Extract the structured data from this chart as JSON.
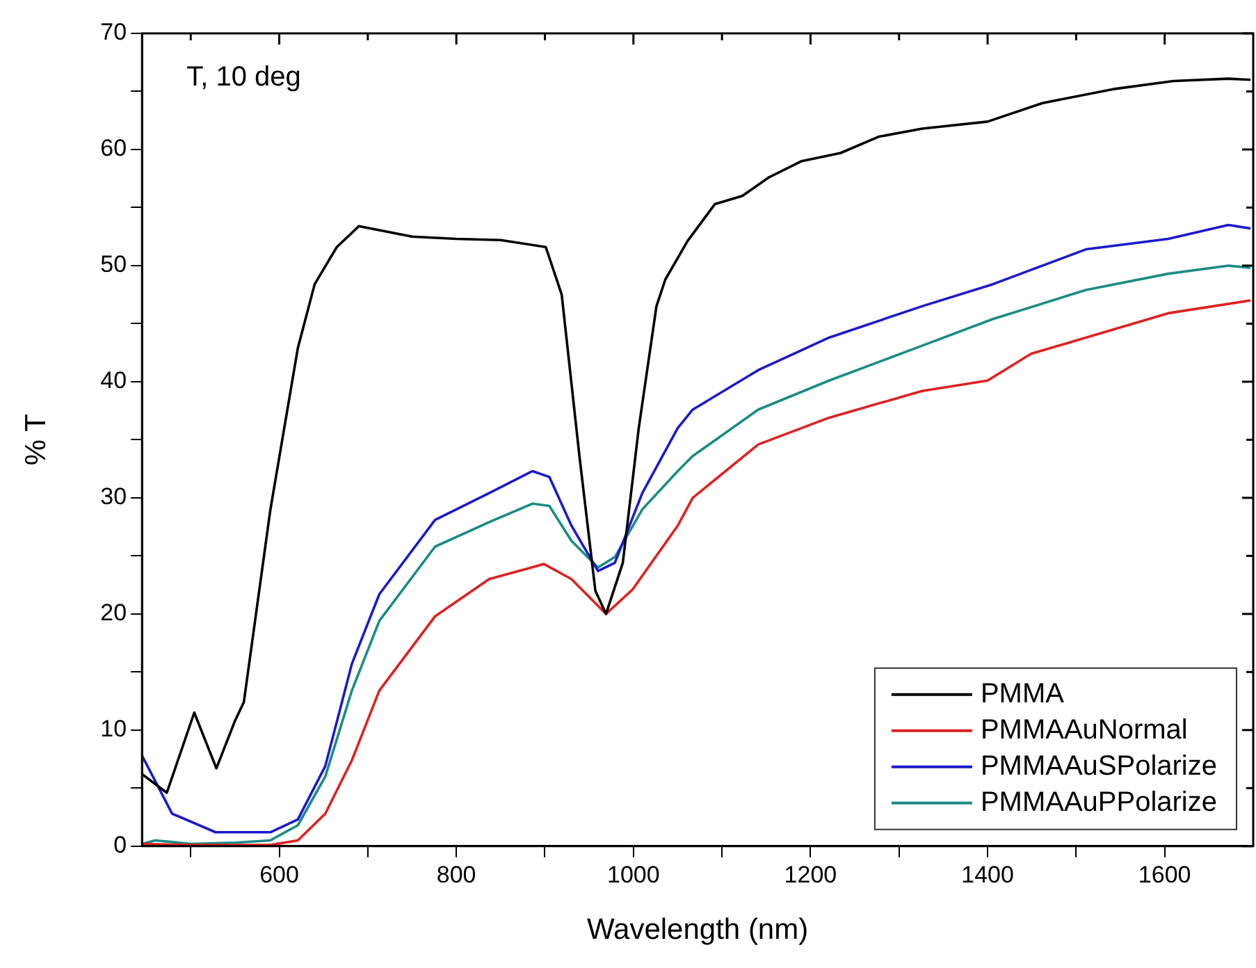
{
  "chart_data": {
    "type": "line",
    "xlabel": "Wavelength (nm)",
    "ylabel": "% T",
    "annotations": [
      "T, 10 deg"
    ],
    "xlim": [
      445,
      1700
    ],
    "ylim": [
      0,
      70
    ],
    "xticks": [
      {
        "value": 500,
        "label": null
      },
      600,
      {
        "value": 700,
        "label": null
      },
      800,
      {
        "value": 900,
        "label": null
      },
      1000,
      {
        "value": 1100,
        "label": null
      },
      1200,
      {
        "value": 1300,
        "label": null
      },
      1400,
      {
        "value": 1500,
        "label": null
      },
      1600
    ],
    "yticks": [
      0,
      {
        "value": 5,
        "label": null
      },
      10,
      {
        "value": 15,
        "label": null
      },
      20,
      {
        "value": 25,
        "label": null
      },
      30,
      {
        "value": 35,
        "label": null
      },
      40,
      {
        "value": 45,
        "label": null
      },
      50,
      {
        "value": 55,
        "label": null
      },
      60,
      {
        "value": 65,
        "label": null
      },
      70
    ],
    "grid": false,
    "legend": "bottom right",
    "marker": "none",
    "line_style": "solid",
    "series": [
      {
        "name": "PMMA",
        "color": "#000000",
        "x": [
          445,
          473,
          504,
          529,
          550,
          560,
          590,
          621,
          640,
          665,
          690,
          750,
          800,
          850,
          901,
          919,
          939,
          957,
          969,
          988,
          1006,
          1026,
          1036,
          1061,
          1092,
          1123,
          1153,
          1190,
          1234,
          1277,
          1326,
          1400,
          1462,
          1542,
          1610,
          1672,
          1697
        ],
        "values": [
          6.2,
          4.6,
          11.5,
          6.7,
          10.8,
          12.4,
          29,
          42.9,
          48.4,
          51.6,
          53.4,
          52.5,
          52.3,
          52.2,
          51.6,
          47.5,
          33.6,
          22,
          20,
          24.4,
          36,
          46.5,
          48.8,
          52.1,
          55.3,
          56,
          57.6,
          59,
          59.7,
          61.1,
          61.8,
          62.4,
          64,
          65.2,
          65.9,
          66.1,
          66
        ]
      },
      {
        "name": "PMMAAuNormal",
        "color": "#e02020",
        "x": [
          445,
          500,
          550,
          590,
          621,
          652,
          682,
          713,
          776,
          837,
          899,
          930,
          969,
          999,
          1050,
          1067,
          1141,
          1221,
          1326,
          1400,
          1449,
          1511,
          1604,
          1697
        ],
        "values": [
          0.2,
          0.1,
          0.1,
          0.1,
          0.5,
          2.8,
          7.4,
          13.4,
          19.8,
          23,
          24.3,
          23,
          20,
          22.1,
          27.6,
          30,
          34.6,
          36.9,
          39.2,
          40.1,
          42.4,
          43.8,
          45.9,
          47
        ]
      },
      {
        "name": "PMMAAuSPolarize",
        "color": "#1a1acc",
        "x": [
          445,
          479,
          528,
          590,
          621,
          652,
          682,
          713,
          776,
          837,
          886,
          905,
          930,
          960,
          979,
          1010,
          1050,
          1067,
          1141,
          1221,
          1326,
          1406,
          1511,
          1604,
          1672,
          1697
        ],
        "values": [
          7.8,
          2.8,
          1.2,
          1.2,
          2.3,
          6.9,
          15.7,
          21.7,
          28.1,
          30.4,
          32.3,
          31.8,
          27.6,
          23.7,
          24.4,
          30.4,
          36,
          37.6,
          41,
          43.8,
          46.5,
          48.4,
          51.4,
          52.3,
          53.5,
          53.2
        ]
      },
      {
        "name": "PMMAAuPPolarize",
        "color": "#1a8c84",
        "x": [
          445,
          460,
          500,
          550,
          590,
          621,
          652,
          682,
          713,
          776,
          837,
          886,
          905,
          930,
          960,
          979,
          1010,
          1050,
          1067,
          1141,
          1221,
          1326,
          1406,
          1511,
          1604,
          1672,
          1697
        ],
        "values": [
          0.2,
          0.5,
          0.2,
          0.3,
          0.5,
          1.8,
          6,
          13.4,
          19.4,
          25.8,
          27.9,
          29.5,
          29.3,
          26.3,
          24,
          24.9,
          29,
          32.3,
          33.6,
          37.6,
          40.1,
          43.1,
          45.4,
          47.9,
          49.3,
          50,
          49.8
        ]
      }
    ]
  }
}
